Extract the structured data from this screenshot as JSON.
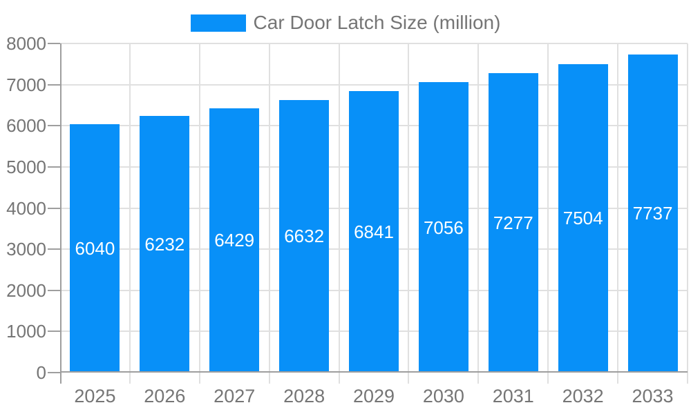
{
  "chart_data": {
    "type": "bar",
    "title": "Car Door Latch Size (million)",
    "xlabel": "",
    "ylabel": "",
    "categories": [
      "2025",
      "2026",
      "2027",
      "2028",
      "2029",
      "2030",
      "2031",
      "2032",
      "2033"
    ],
    "series": [
      {
        "name": "Car Door Latch Size (million)",
        "values": [
          6040,
          6232,
          6429,
          6632,
          6841,
          7056,
          7277,
          7504,
          7737
        ]
      }
    ],
    "bar_value_labels": [
      "6040",
      "6232",
      "6429",
      "6632",
      "6841",
      "7056",
      "7277",
      "7504",
      "7737"
    ],
    "ylim": [
      0,
      8000
    ],
    "y_ticks": [
      0,
      1000,
      2000,
      3000,
      4000,
      5000,
      6000,
      7000,
      8000
    ],
    "grid": "both",
    "legend_position": "top-center",
    "bar_label_position": "inside-center",
    "colors": {
      "bar": "#0890f8",
      "bar_label_text": "#ffffff",
      "axis_line": "#9e9e9e",
      "gridline": "#e0e0e0",
      "axis_text": "#757575",
      "background": "#ffffff"
    }
  }
}
